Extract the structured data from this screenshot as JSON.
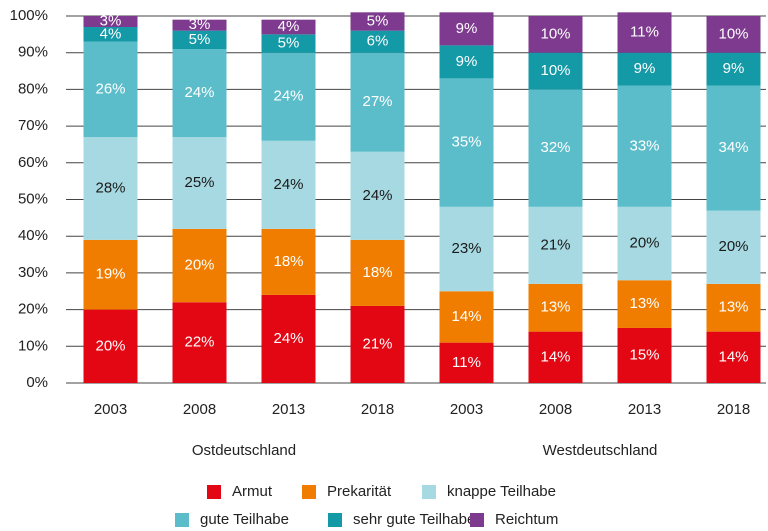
{
  "chart_data": {
    "type": "stacked_bar",
    "categories": [
      "2003",
      "2008",
      "2013",
      "2018",
      "2003",
      "2008",
      "2013",
      "2018"
    ],
    "groups": [
      {
        "label": "Ostdeutschland",
        "span": [
          0,
          3
        ]
      },
      {
        "label": "Westdeutschland",
        "span": [
          4,
          7
        ]
      }
    ],
    "series": [
      {
        "name": "Armut",
        "color": "#e30613",
        "label_color": "#ffffff",
        "values": [
          20,
          22,
          24,
          21,
          11,
          14,
          15,
          14
        ],
        "value_labels": [
          "20%",
          "22%",
          "24%",
          "21%",
          "11%",
          "14%",
          "15%",
          "14%"
        ]
      },
      {
        "name": "Prekarität",
        "color": "#f07d00",
        "label_color": "#ffffff",
        "values": [
          19,
          20,
          18,
          18,
          14,
          13,
          13,
          13
        ],
        "value_labels": [
          "19%",
          "20%",
          "18%",
          "18%",
          "14%",
          "13%",
          "13%",
          "13%"
        ]
      },
      {
        "name": "knappe Teilhabe",
        "color": "#a6d9e1",
        "label_color": "#1a1a1a",
        "values": [
          28,
          25,
          24,
          24,
          23,
          21,
          20,
          20
        ],
        "value_labels": [
          "28%",
          "25%",
          "24%",
          "24%",
          "23%",
          "21%",
          "20%",
          "20%"
        ]
      },
      {
        "name": "gute Teilhabe",
        "color": "#5cbdca",
        "label_color": "#ffffff",
        "values": [
          26,
          24,
          24,
          27,
          35,
          32,
          33,
          34
        ],
        "value_labels": [
          "26%",
          "24%",
          "24%",
          "27%",
          "35%",
          "32%",
          "33%",
          "34%"
        ]
      },
      {
        "name": "sehr gute Teilhabe",
        "color": "#1499a6",
        "label_color": "#ffffff",
        "values": [
          4,
          5,
          5,
          6,
          9,
          10,
          9,
          9
        ],
        "value_labels": [
          "4%",
          "5%",
          "5%",
          "6%",
          "9%",
          "10%",
          "9%",
          "9%"
        ]
      },
      {
        "name": "Reichtum",
        "color": "#7d3a8e",
        "label_color": "#ffffff",
        "values": [
          3,
          3,
          4,
          5,
          9,
          10,
          11,
          10
        ],
        "value_labels": [
          "3%",
          "3%",
          "4%",
          "5%",
          "9%",
          "10%",
          "11%",
          "10%"
        ]
      }
    ],
    "ylim": [
      0,
      100
    ],
    "yticks": [
      {
        "value": 0,
        "label": "0%"
      },
      {
        "value": 10,
        "label": "10%"
      },
      {
        "value": 20,
        "label": "20%"
      },
      {
        "value": 30,
        "label": "30%"
      },
      {
        "value": 40,
        "label": "40%"
      },
      {
        "value": 50,
        "label": "50%"
      },
      {
        "value": 60,
        "label": "60%"
      },
      {
        "value": 70,
        "label": "70%"
      },
      {
        "value": 80,
        "label": "80%"
      },
      {
        "value": 90,
        "label": "90%"
      },
      {
        "value": 100,
        "label": "100%"
      }
    ],
    "grid": true,
    "legend": "bottom"
  }
}
